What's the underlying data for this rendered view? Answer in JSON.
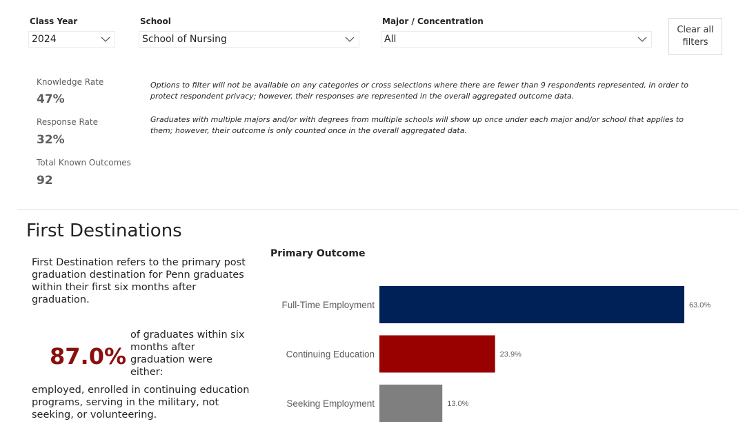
{
  "filters": {
    "class_year": {
      "label": "Class Year",
      "value": "2024"
    },
    "school": {
      "label": "School",
      "value": "School of Nursing"
    },
    "major": {
      "label": "Major / Concentration",
      "value": "All"
    },
    "clear_label": "Clear all\nfilters"
  },
  "kpis": [
    {
      "label": "Knowledge Rate",
      "value": "47%"
    },
    {
      "label": "Response Rate",
      "value": "32%"
    },
    {
      "label": "Total Known Outcomes",
      "value": "92"
    }
  ],
  "notes": [
    "Options to filter will not be available on any categories or cross selections where there are fewer than 9 respondents represented, in order to protect respondent privacy; however, their responses are represented in the overall aggregated outcome data.",
    "Graduates with multiple majors and/or with degrees from multiple schools will show up once under each major and/or school that applies to them; however, their outcome is only counted once in the overall aggregated data."
  ],
  "section": {
    "title": "First Destinations",
    "description": "First Destination refers to the primary post graduation destination for Penn graduates within their first six months after graduation.",
    "big_pct": "87.0%",
    "pct_caption": "of graduates within six months after graduation were either:",
    "outcomes_text": "employed, enrolled in continuing education programs, serving in the military, not seeking, or volunteering."
  },
  "chart_data": {
    "type": "bar",
    "orientation": "horizontal",
    "title": "Primary Outcome",
    "categories": [
      "Full-Time Employment",
      "Continuing Education",
      "Seeking Employment"
    ],
    "values": [
      63.0,
      23.9,
      13.0
    ],
    "value_labels": [
      "63.0%",
      "23.9%",
      "13.0%"
    ],
    "colors": [
      "#002157",
      "#990000",
      "#7f7f7f"
    ],
    "xlim": [
      0,
      63.0
    ],
    "grid": false,
    "legend": "none"
  }
}
